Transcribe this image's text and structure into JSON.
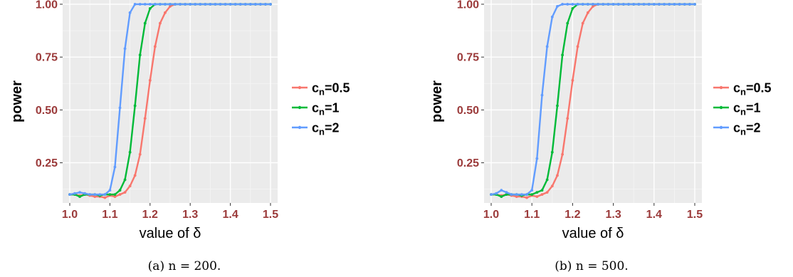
{
  "chart_data": [
    {
      "type": "line",
      "caption": "(a) n = 200.",
      "xlabel": "value of δ",
      "ylabel": "power",
      "xlim": [
        1.0,
        1.5
      ],
      "ylim": [
        0.06,
        1.02
      ],
      "xticks": [
        "1.0",
        "1.1",
        "1.2",
        "1.3",
        "1.4",
        "1.5"
      ],
      "yticks": [
        "0.25",
        "0.50",
        "0.75",
        "1.00"
      ],
      "legend_position": "right",
      "grid": true,
      "x": [
        1.0,
        1.0125,
        1.025,
        1.0375,
        1.05,
        1.0625,
        1.075,
        1.0875,
        1.1,
        1.1125,
        1.125,
        1.1375,
        1.15,
        1.1625,
        1.175,
        1.1875,
        1.2,
        1.2125,
        1.225,
        1.2375,
        1.25,
        1.2625,
        1.275,
        1.2875,
        1.3,
        1.3125,
        1.325,
        1.3375,
        1.35,
        1.3625,
        1.375,
        1.3875,
        1.4,
        1.4125,
        1.425,
        1.4375,
        1.45,
        1.4625,
        1.475,
        1.4875,
        1.5
      ],
      "series": [
        {
          "name": "c_n=0.5",
          "label_main": "c",
          "label_sub": "n",
          "label_rest": "=0.5",
          "color": "#f8766d",
          "values": [
            0.1,
            0.1,
            0.095,
            0.1,
            0.095,
            0.09,
            0.09,
            0.085,
            0.095,
            0.09,
            0.1,
            0.11,
            0.14,
            0.19,
            0.29,
            0.46,
            0.64,
            0.8,
            0.91,
            0.96,
            0.99,
            1.0,
            1.0,
            1.0,
            1.0,
            1.0,
            1.0,
            1.0,
            1.0,
            1.0,
            1.0,
            1.0,
            1.0,
            1.0,
            1.0,
            1.0,
            1.0,
            1.0,
            1.0,
            1.0,
            1.0
          ]
        },
        {
          "name": "c_n=1",
          "label_main": "c",
          "label_sub": "n",
          "label_rest": "=1",
          "color": "#00ba38",
          "values": [
            0.1,
            0.1,
            0.09,
            0.1,
            0.1,
            0.1,
            0.095,
            0.1,
            0.1,
            0.1,
            0.12,
            0.17,
            0.3,
            0.52,
            0.76,
            0.91,
            0.98,
            1.0,
            1.0,
            1.0,
            1.0,
            1.0,
            1.0,
            1.0,
            1.0,
            1.0,
            1.0,
            1.0,
            1.0,
            1.0,
            1.0,
            1.0,
            1.0,
            1.0,
            1.0,
            1.0,
            1.0,
            1.0,
            1.0,
            1.0,
            1.0
          ]
        },
        {
          "name": "c_n=2",
          "label_main": "c",
          "label_sub": "n",
          "label_rest": "=2",
          "color": "#619cff",
          "values": [
            0.1,
            0.105,
            0.11,
            0.105,
            0.1,
            0.1,
            0.1,
            0.1,
            0.12,
            0.23,
            0.51,
            0.79,
            0.96,
            1.0,
            1.0,
            1.0,
            1.0,
            1.0,
            1.0,
            1.0,
            1.0,
            1.0,
            1.0,
            1.0,
            1.0,
            1.0,
            1.0,
            1.0,
            1.0,
            1.0,
            1.0,
            1.0,
            1.0,
            1.0,
            1.0,
            1.0,
            1.0,
            1.0,
            1.0,
            1.0,
            1.0
          ]
        }
      ]
    },
    {
      "type": "line",
      "caption": "(b) n = 500.",
      "xlabel": "value of δ",
      "ylabel": "power",
      "xlim": [
        1.0,
        1.5
      ],
      "ylim": [
        0.06,
        1.02
      ],
      "xticks": [
        "1.0",
        "1.1",
        "1.2",
        "1.3",
        "1.4",
        "1.5"
      ],
      "yticks": [
        "0.25",
        "0.50",
        "0.75",
        "1.00"
      ],
      "legend_position": "right",
      "grid": true,
      "x": [
        1.0,
        1.0125,
        1.025,
        1.0375,
        1.05,
        1.0625,
        1.075,
        1.0875,
        1.1,
        1.1125,
        1.125,
        1.1375,
        1.15,
        1.1625,
        1.175,
        1.1875,
        1.2,
        1.2125,
        1.225,
        1.2375,
        1.25,
        1.2625,
        1.275,
        1.2875,
        1.3,
        1.3125,
        1.325,
        1.3375,
        1.35,
        1.3625,
        1.375,
        1.3875,
        1.4,
        1.4125,
        1.425,
        1.4375,
        1.45,
        1.4625,
        1.475,
        1.4875,
        1.5
      ],
      "series": [
        {
          "name": "c_n=0.5",
          "label_main": "c",
          "label_sub": "n",
          "label_rest": "=0.5",
          "color": "#f8766d",
          "values": [
            0.1,
            0.1,
            0.095,
            0.1,
            0.095,
            0.09,
            0.09,
            0.085,
            0.095,
            0.09,
            0.1,
            0.11,
            0.14,
            0.19,
            0.29,
            0.46,
            0.64,
            0.8,
            0.91,
            0.96,
            0.99,
            1.0,
            1.0,
            1.0,
            1.0,
            1.0,
            1.0,
            1.0,
            1.0,
            1.0,
            1.0,
            1.0,
            1.0,
            1.0,
            1.0,
            1.0,
            1.0,
            1.0,
            1.0,
            1.0,
            1.0
          ]
        },
        {
          "name": "c_n=1",
          "label_main": "c",
          "label_sub": "n",
          "label_rest": "=1",
          "color": "#00ba38",
          "values": [
            0.1,
            0.1,
            0.09,
            0.1,
            0.1,
            0.1,
            0.095,
            0.1,
            0.1,
            0.11,
            0.12,
            0.17,
            0.3,
            0.52,
            0.76,
            0.91,
            0.98,
            1.0,
            1.0,
            1.0,
            1.0,
            1.0,
            1.0,
            1.0,
            1.0,
            1.0,
            1.0,
            1.0,
            1.0,
            1.0,
            1.0,
            1.0,
            1.0,
            1.0,
            1.0,
            1.0,
            1.0,
            1.0,
            1.0,
            1.0,
            1.0
          ]
        },
        {
          "name": "c_n=2",
          "label_main": "c",
          "label_sub": "n",
          "label_rest": "=2",
          "color": "#619cff",
          "values": [
            0.1,
            0.105,
            0.12,
            0.11,
            0.1,
            0.1,
            0.1,
            0.1,
            0.12,
            0.27,
            0.57,
            0.8,
            0.94,
            0.99,
            1.0,
            1.0,
            1.0,
            1.0,
            1.0,
            1.0,
            1.0,
            1.0,
            1.0,
            1.0,
            1.0,
            1.0,
            1.0,
            1.0,
            1.0,
            1.0,
            1.0,
            1.0,
            1.0,
            1.0,
            1.0,
            1.0,
            1.0,
            1.0,
            1.0,
            1.0,
            1.0
          ]
        }
      ]
    }
  ]
}
